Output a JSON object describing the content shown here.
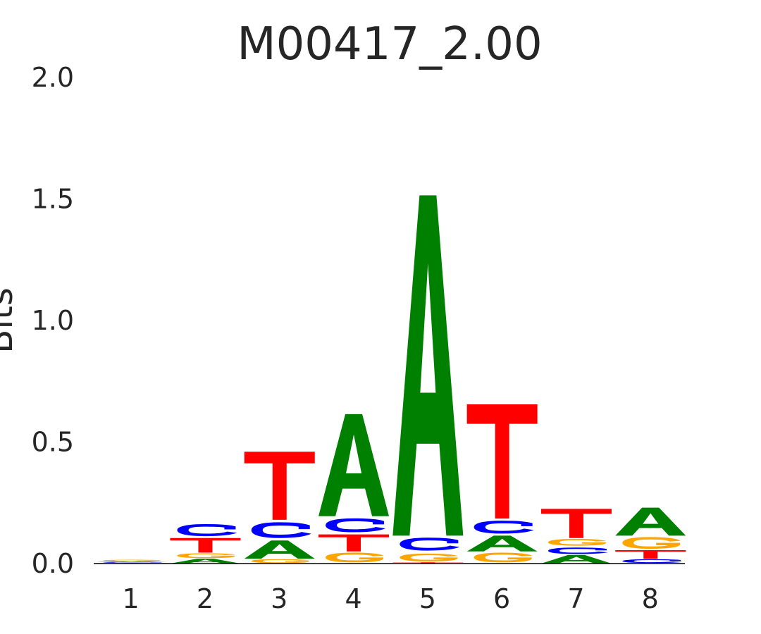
{
  "chart_data": {
    "type": "sequence-logo",
    "title": "M00417_2.00",
    "ylabel": "Bits",
    "ylim": [
      0,
      2.0
    ],
    "yticks": [
      "0.0",
      "0.5",
      "1.0",
      "1.5",
      "2.0"
    ],
    "positions": [
      "1",
      "2",
      "3",
      "4",
      "5",
      "6",
      "7",
      "8"
    ],
    "colors": {
      "A": "#008000",
      "C": "#0000ff",
      "G": "#ffa500",
      "T": "#ff0000"
    },
    "stacks": [
      [
        {
          "base": "T",
          "value": 0.002
        },
        {
          "base": "C",
          "value": 0.004
        },
        {
          "base": "A",
          "value": 0.004
        },
        {
          "base": "G",
          "value": 0.006
        }
      ],
      [
        {
          "base": "A",
          "value": 0.02
        },
        {
          "base": "G",
          "value": 0.025
        },
        {
          "base": "T",
          "value": 0.06
        },
        {
          "base": "C",
          "value": 0.065
        }
      ],
      [
        {
          "base": "G",
          "value": 0.02
        },
        {
          "base": "A",
          "value": 0.075
        },
        {
          "base": "C",
          "value": 0.085
        },
        {
          "base": "T",
          "value": 0.28
        }
      ],
      [
        {
          "base": "G",
          "value": 0.05
        },
        {
          "base": "T",
          "value": 0.07
        },
        {
          "base": "C",
          "value": 0.075
        },
        {
          "base": "A",
          "value": 0.42
        }
      ],
      [
        {
          "base": "T",
          "value": 0.005
        },
        {
          "base": "G",
          "value": 0.04
        },
        {
          "base": "C",
          "value": 0.07
        },
        {
          "base": "A",
          "value": 1.4
        }
      ],
      [
        {
          "base": "G",
          "value": 0.05
        },
        {
          "base": "A",
          "value": 0.065
        },
        {
          "base": "C",
          "value": 0.07
        },
        {
          "base": "T",
          "value": 0.47
        }
      ],
      [
        {
          "base": "A",
          "value": 0.035
        },
        {
          "base": "C",
          "value": 0.035
        },
        {
          "base": "G",
          "value": 0.035
        },
        {
          "base": "T",
          "value": 0.12
        }
      ],
      [
        {
          "base": "C",
          "value": 0.02
        },
        {
          "base": "T",
          "value": 0.035
        },
        {
          "base": "G",
          "value": 0.06
        },
        {
          "base": "A",
          "value": 0.115
        }
      ]
    ]
  }
}
